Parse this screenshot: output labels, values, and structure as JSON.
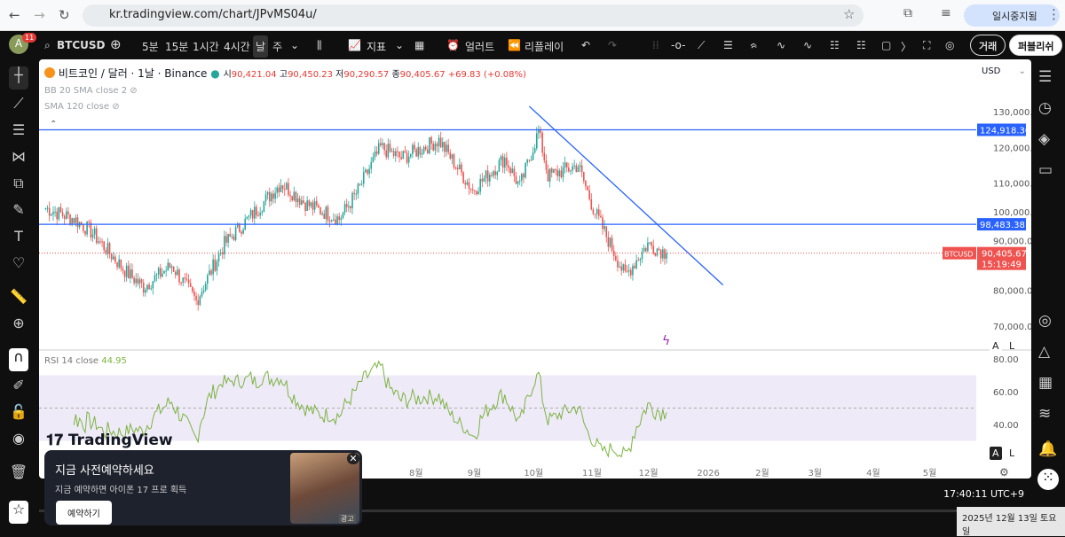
{
  "browser": {
    "url": "kr.tradingview.com/chart/JPvMS04u/",
    "paused_label": "일시중지됨"
  },
  "toolbar": {
    "avatar": "A",
    "notif_count": "11",
    "symbol": "BTCUSD",
    "intervals": [
      "5분",
      "15분",
      "1시간",
      "4시간",
      "날",
      "주"
    ],
    "indicators": "지표",
    "alert": "얼러트",
    "replay": "리플레이",
    "trade": "거래",
    "publish": "퍼블리쉬"
  },
  "legend": {
    "title": "비트코인 / 달러 · 1날 · Binance",
    "open_label": "시",
    "open": "90,421.04",
    "high_label": "고",
    "high": "90,450.23",
    "low_label": "저",
    "low": "90,290.57",
    "close_label": "종",
    "close": "90,405.67",
    "change": "+69.83 (+0.08%)",
    "bb": "BB 20 SMA close 2",
    "sma": "SMA 120 close",
    "rsi_label": "RSI 14 close",
    "rsi_value": "44.95"
  },
  "currency": "USD",
  "price_labels": {
    "line1": "124,918.30",
    "line2": "98,483.38",
    "symbol": "BTCUSD",
    "last": "90,405.67",
    "countdown": "15:19:49"
  },
  "colors": {
    "up": "#26a69a",
    "down": "#ef5350",
    "lines": "#2962ff",
    "rsi": "#7cb342"
  },
  "chart_data": {
    "type": "candlestick",
    "y_ticks": [
      "130,000.00",
      "120,000.00",
      "110,000.00",
      "100,000.00",
      "90,000.00",
      "80,000.00",
      "70,000.00"
    ],
    "ylim": [
      70000,
      130000
    ],
    "x_ticks": [
      "8월",
      "9월",
      "10월",
      "11월",
      "12월",
      "2026",
      "2월",
      "3월",
      "4월",
      "5월"
    ],
    "closes": [
      [
        "2025-01-17",
        103000
      ],
      [
        "2025-02-01",
        100000
      ],
      [
        "2025-02-10",
        96500
      ],
      [
        "2025-03-01",
        85000
      ],
      [
        "2025-03-10",
        81000
      ],
      [
        "2025-03-25",
        87000
      ],
      [
        "2025-04-07",
        77000
      ],
      [
        "2025-04-22",
        93000
      ],
      [
        "2025-05-10",
        103000
      ],
      [
        "2025-05-22",
        110000
      ],
      [
        "2025-06-05",
        104000
      ],
      [
        "2025-06-22",
        100000
      ],
      [
        "2025-07-01",
        107000
      ],
      [
        "2025-07-14",
        120000
      ],
      [
        "2025-07-25",
        117000
      ],
      [
        "2025-08-14",
        122000
      ],
      [
        "2025-09-01",
        108000
      ],
      [
        "2025-09-18",
        117000
      ],
      [
        "2025-09-26",
        109000
      ],
      [
        "2025-10-06",
        124500
      ],
      [
        "2025-10-11",
        112000
      ],
      [
        "2025-10-27",
        115000
      ],
      [
        "2025-11-04",
        103000
      ],
      [
        "2025-11-21",
        84000
      ],
      [
        "2025-12-03",
        93000
      ],
      [
        "2025-12-13",
        90405
      ]
    ],
    "hlines": [
      124918.3,
      98483.38
    ],
    "trendline": [
      [
        "2025-10-01",
        131500
      ],
      [
        "2026-01-12",
        81500
      ]
    ],
    "rsi": {
      "ticks": [
        "80.00",
        "60.00",
        "40.00"
      ],
      "ylim": [
        20,
        85
      ],
      "band": [
        30,
        70
      ],
      "mid": 50
    }
  },
  "ad": {
    "title": "지금 사전예약하세요",
    "subtitle": "지금 예약하면 아이폰 17 프로 획득",
    "button": "예약하기",
    "tag": "광고"
  },
  "watermark": "TradingView",
  "footer": {
    "time": "17:40:11 UTC+9",
    "date": "2025년 12월 13일 토요일"
  },
  "scale_buttons": [
    "A",
    "L"
  ]
}
